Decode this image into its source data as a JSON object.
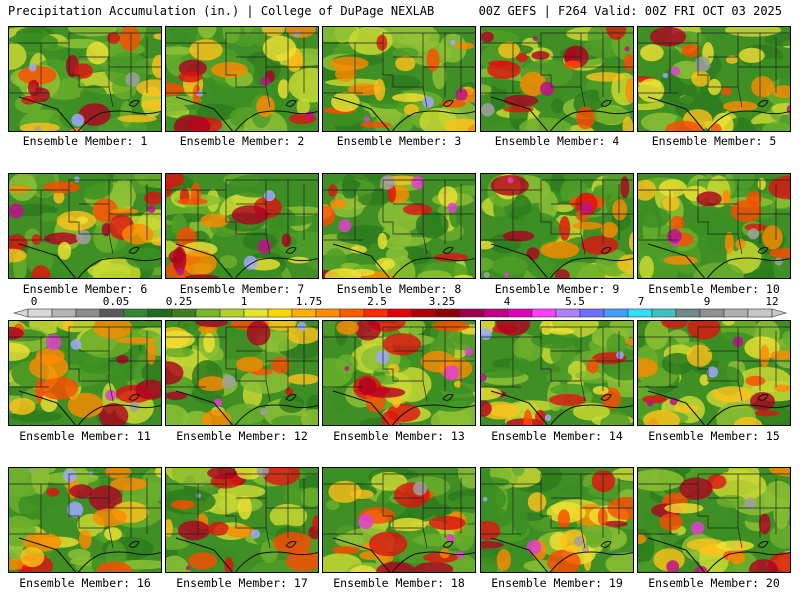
{
  "header": {
    "title": "Precipitation Accumulation (in.) | College of DuPage NEXLAB",
    "run_info": "00Z GEFS | F264 Valid: 00Z FRI OCT 03 2025"
  },
  "colorbar": {
    "labels": [
      "0",
      "0.05",
      "0.25",
      "1",
      "1.75",
      "2.5",
      "3.25",
      "4",
      "5.5",
      "7",
      "9",
      "12"
    ],
    "colors": [
      "#d8d8d8",
      "#b4b4b4",
      "#8c8c8c",
      "#5a5a5a",
      "#2f8a2f",
      "#1f6b1f",
      "#3d7f1a",
      "#7ab82a",
      "#b3d12e",
      "#e5e52e",
      "#ffd700",
      "#ffb000",
      "#ff8c00",
      "#ff5a00",
      "#ff2a00",
      "#e00000",
      "#b00000",
      "#8b0000",
      "#9b0050",
      "#c0008a",
      "#e000c0",
      "#ff40ff",
      "#b080ff",
      "#7070ff",
      "#40a0ff",
      "#30e0ff",
      "#40c0c0",
      "#708888",
      "#909090",
      "#b0b0b0",
      "#c8c8c8"
    ]
  },
  "members": [
    {
      "caption": "Ensemble Member: 1"
    },
    {
      "caption": "Ensemble Member: 2"
    },
    {
      "caption": "Ensemble Member: 3"
    },
    {
      "caption": "Ensemble Member: 4"
    },
    {
      "caption": "Ensemble Member: 5"
    },
    {
      "caption": "Ensemble Member: 6"
    },
    {
      "caption": "Ensemble Member: 7"
    },
    {
      "caption": "Ensemble Member: 8"
    },
    {
      "caption": "Ensemble Member: 9"
    },
    {
      "caption": "Ensemble Member: 10"
    },
    {
      "caption": "Ensemble Member: 11"
    },
    {
      "caption": "Ensemble Member: 12"
    },
    {
      "caption": "Ensemble Member: 13"
    },
    {
      "caption": "Ensemble Member: 14"
    },
    {
      "caption": "Ensemble Member: 15"
    },
    {
      "caption": "Ensemble Member: 16"
    },
    {
      "caption": "Ensemble Member: 17"
    },
    {
      "caption": "Ensemble Member: 18"
    },
    {
      "caption": "Ensemble Member: 19"
    },
    {
      "caption": "Ensemble Member: 20"
    }
  ]
}
